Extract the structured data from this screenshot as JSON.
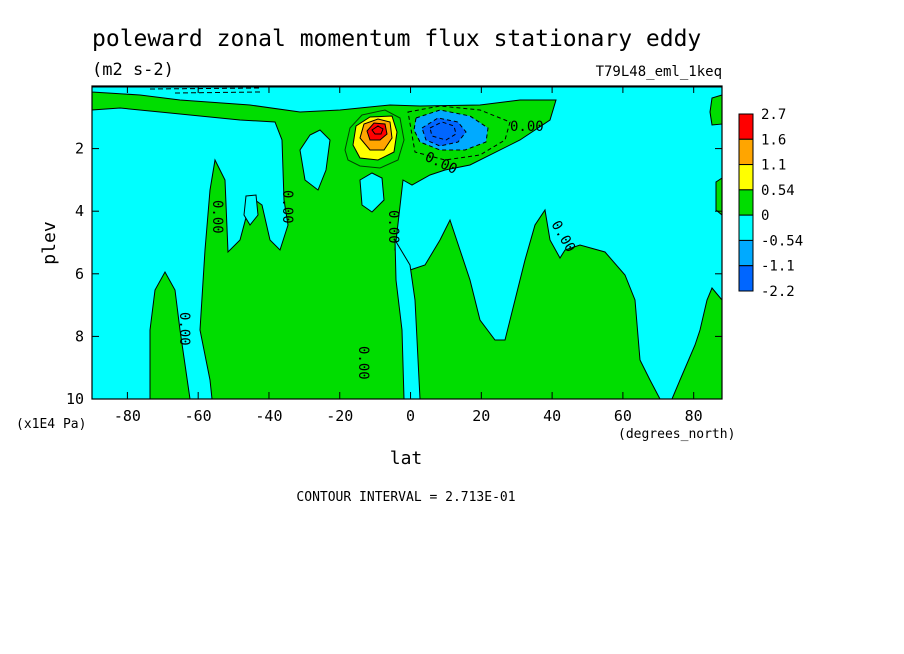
{
  "chart_data": {
    "type": "contour",
    "title": "poleward zonal momentum flux stationary eddy",
    "units": "(m2 s-2)",
    "dataset": "T79L48_eml_1keq",
    "xlabel": "lat",
    "xunits": "(degrees_north)",
    "ylabel": "plev",
    "yunits": "(x1E4 Pa)",
    "xlim": [
      -90,
      88
    ],
    "ylim": [
      10,
      0
    ],
    "xticks": [
      -80,
      -60,
      -40,
      -20,
      0,
      20,
      40,
      60,
      80
    ],
    "yticks": [
      2,
      4,
      6,
      8,
      10
    ],
    "contour_interval_text": "CONTOUR INTERVAL = 2.713E-01",
    "contour_labels": [
      "0.00",
      "0.00",
      "0.00",
      "0.00",
      "0.00",
      "0.00",
      "0.00",
      "0.00"
    ],
    "colorbar": {
      "levels": [
        "2.7",
        "1.6",
        "1.1",
        "0.54",
        "0",
        "-0.54",
        "-1.1",
        "-2.2"
      ],
      "colors": [
        "#ff0000",
        "#ffa500",
        "#ffff00",
        "#00dd00",
        "#00ffff",
        "#00aaff",
        "#0066ff"
      ]
    },
    "features": [
      {
        "name": "positive maximum",
        "lat": -9,
        "plev": 1.5,
        "value": 2.7
      },
      {
        "name": "negative minimum",
        "lat": 8,
        "plev": 1.5,
        "value": -2.2
      }
    ]
  }
}
